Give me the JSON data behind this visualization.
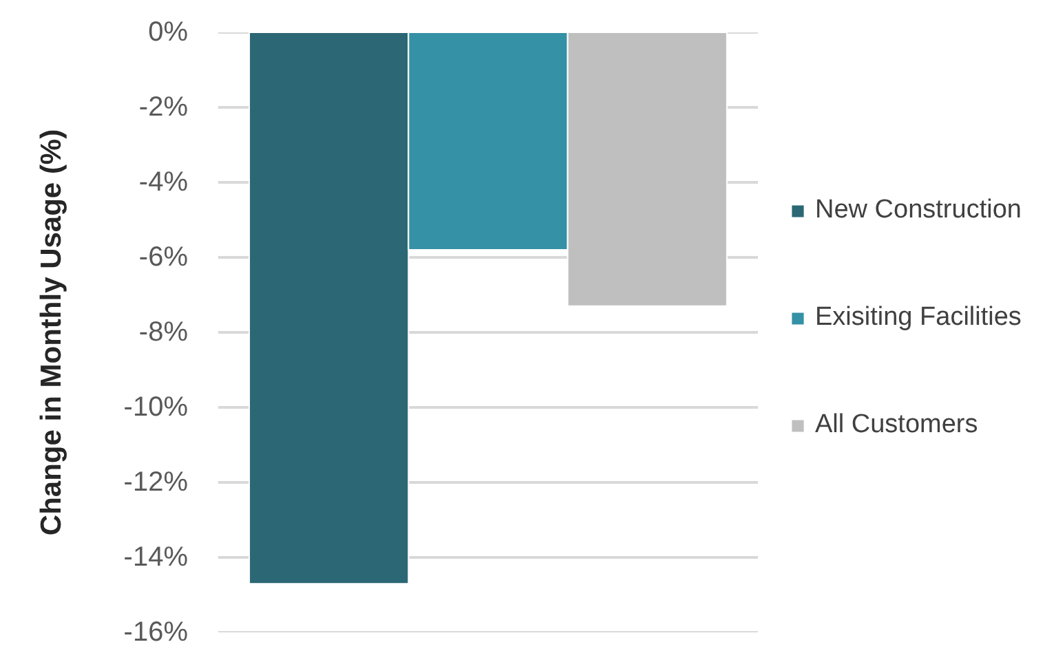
{
  "chart_data": {
    "type": "bar",
    "ylabel": "Change in Monthly Usage (%)",
    "categories": [
      null
    ],
    "series": [
      {
        "name": "New Construction",
        "color": "#2b6774",
        "values": [
          -14.7
        ]
      },
      {
        "name": "Exisiting Facilities",
        "color": "#3591a5",
        "values": [
          -5.8
        ]
      },
      {
        "name": "All Customers",
        "color": "#bfbfbf",
        "values": [
          -7.3
        ]
      }
    ],
    "ylim": [
      -16,
      0
    ],
    "yticks": [
      {
        "value": 0,
        "label": "0%"
      },
      {
        "value": -2,
        "label": "-2%"
      },
      {
        "value": -4,
        "label": "-4%"
      },
      {
        "value": -6,
        "label": "-6%"
      },
      {
        "value": -8,
        "label": "-8%"
      },
      {
        "value": -10,
        "label": "-10%"
      },
      {
        "value": -12,
        "label": "-12%"
      },
      {
        "value": -14,
        "label": "-14%"
      },
      {
        "value": -16,
        "label": "-16%"
      }
    ],
    "grid": "y",
    "legend": "right",
    "tick_labels": "y"
  }
}
